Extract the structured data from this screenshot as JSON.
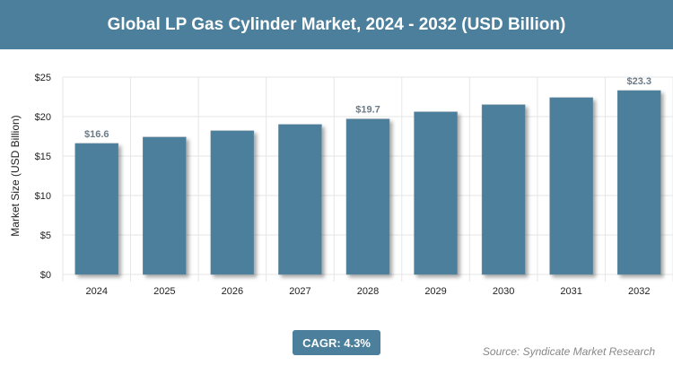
{
  "title": "Global LP Gas Cylinder Market, 2024 - 2032 (USD Billion)",
  "cagr": "CAGR: 4.3%",
  "source": "Source: Syndicate Market Research",
  "chart_data": {
    "type": "bar",
    "title": "Global LP Gas Cylinder Market, 2024 - 2032 (USD Billion)",
    "xlabel": "",
    "ylabel": "Market Size (USD Billion)",
    "ylim": [
      0,
      25
    ],
    "yticks": [
      "$0",
      "$5",
      "$10",
      "$15",
      "$20",
      "$25"
    ],
    "categories": [
      "2024",
      "2025",
      "2026",
      "2027",
      "2028",
      "2029",
      "2030",
      "2031",
      "2032"
    ],
    "values": [
      16.6,
      17.4,
      18.2,
      19.0,
      19.7,
      20.6,
      21.5,
      22.4,
      23.3
    ],
    "data_labels": {
      "2024": "$16.6",
      "2028": "$19.7",
      "2032": "$23.3"
    },
    "grid": true,
    "color": "#4b7f9b"
  }
}
